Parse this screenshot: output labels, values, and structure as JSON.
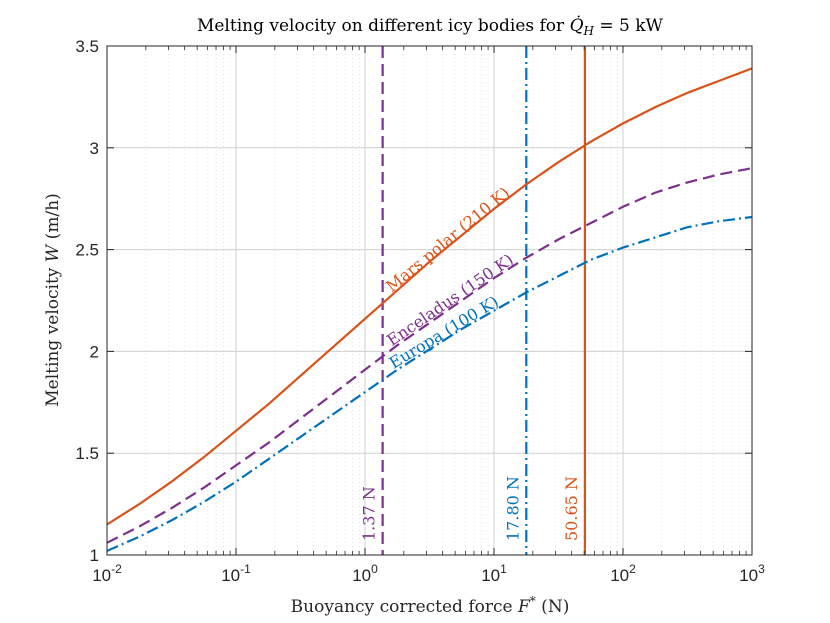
{
  "chart_data": {
    "type": "line",
    "title": "Melting velocity on different icy bodies for Q̇H = 5 kW",
    "title_parts": {
      "prefix": "Melting velocity on different icy bodies for ",
      "symbol": "Q̇",
      "subscript": "H",
      "suffix": " = 5 kW"
    },
    "xlabel": "Buoyancy corrected force F* (N)",
    "xlabel_parts": {
      "prefix": "Buoyancy corrected force ",
      "symbol": "F",
      "sup": "*",
      "suffix": " (N)"
    },
    "ylabel": "Melting velocity W (m/h)",
    "ylabel_parts": {
      "prefix": "Melting velocity ",
      "symbol": "W",
      "suffix": " (m/h)"
    },
    "xscale": "log",
    "xlim": [
      0.01,
      1000
    ],
    "ylim": [
      1,
      3.5
    ],
    "grid": true,
    "x_ticks": [
      {
        "value": 0.01,
        "base": "10",
        "exp": "-2"
      },
      {
        "value": 0.1,
        "base": "10",
        "exp": "-1"
      },
      {
        "value": 1,
        "base": "10",
        "exp": "0"
      },
      {
        "value": 10,
        "base": "10",
        "exp": "1"
      },
      {
        "value": 100,
        "base": "10",
        "exp": "2"
      },
      {
        "value": 1000,
        "base": "10",
        "exp": "3"
      }
    ],
    "y_ticks": [
      "1",
      "1.5",
      "2",
      "2.5",
      "3",
      "3.5"
    ],
    "series": [
      {
        "name": "Mars polar (210 K)",
        "color": "#d95319",
        "dash": "solid",
        "x": [
          0.01,
          0.0178,
          0.0316,
          0.0562,
          0.1,
          0.178,
          0.316,
          0.562,
          1,
          1.78,
          3.16,
          5.62,
          10,
          17.8,
          31.6,
          56.2,
          100,
          178,
          316,
          562,
          1000
        ],
        "y": [
          1.15,
          1.25,
          1.36,
          1.48,
          1.61,
          1.74,
          1.88,
          2.02,
          2.16,
          2.3,
          2.44,
          2.57,
          2.7,
          2.82,
          2.93,
          3.03,
          3.12,
          3.2,
          3.27,
          3.33,
          3.39
        ]
      },
      {
        "name": "Enceladus (150 K)",
        "color": "#7e2f8e",
        "dash": "dashed",
        "x": [
          0.01,
          0.0178,
          0.0316,
          0.0562,
          0.1,
          0.178,
          0.316,
          0.562,
          1,
          1.78,
          3.16,
          5.62,
          10,
          17.8,
          31.6,
          56.2,
          100,
          178,
          316,
          562,
          1000
        ],
        "y": [
          1.06,
          1.14,
          1.23,
          1.33,
          1.44,
          1.55,
          1.67,
          1.79,
          1.91,
          2.03,
          2.14,
          2.25,
          2.36,
          2.46,
          2.55,
          2.63,
          2.71,
          2.78,
          2.83,
          2.87,
          2.9
        ]
      },
      {
        "name": "Europa (100 K)",
        "color": "#0072bd",
        "dash": "dash-dot",
        "x": [
          0.01,
          0.0178,
          0.0316,
          0.0562,
          0.1,
          0.178,
          0.316,
          0.562,
          1,
          1.78,
          3.16,
          5.62,
          10,
          17.8,
          31.6,
          56.2,
          100,
          178,
          316,
          562,
          1000
        ],
        "y": [
          1.02,
          1.09,
          1.17,
          1.26,
          1.36,
          1.47,
          1.58,
          1.69,
          1.8,
          1.91,
          2.01,
          2.11,
          2.2,
          2.29,
          2.37,
          2.45,
          2.51,
          2.56,
          2.61,
          2.64,
          2.66
        ]
      }
    ],
    "vertical_lines": [
      {
        "x": 1.37,
        "label": "1.37 N",
        "color": "#7e2f8e",
        "dash": "dashed"
      },
      {
        "x": 17.8,
        "label": "17.80 N",
        "color": "#0072bd",
        "dash": "dash-dot"
      },
      {
        "x": 50.65,
        "label": "50.65 N",
        "color": "#d95319",
        "dash": "solid"
      }
    ],
    "curve_labels": [
      {
        "text": "Mars polar (210 K)",
        "series": 0
      },
      {
        "text": "Enceladus (150 K)",
        "series": 1
      },
      {
        "text": "Europa (100 K)",
        "series": 2
      }
    ]
  }
}
